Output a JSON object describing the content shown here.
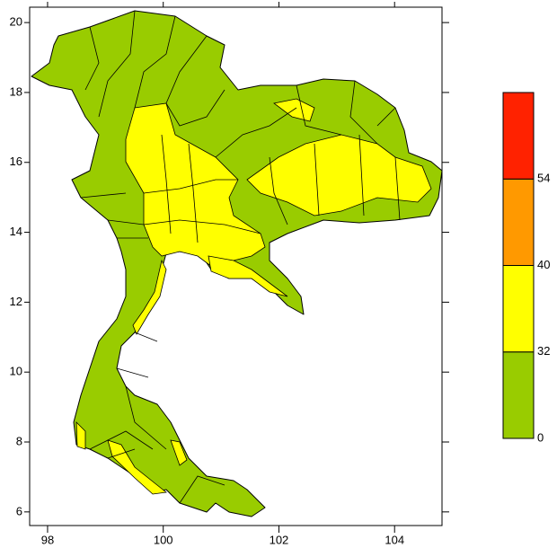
{
  "chart_data": {
    "type": "map",
    "xlim": [
      97.69,
      104.82
    ],
    "ylim": [
      5.61,
      20.44
    ],
    "xticks": [
      98,
      100,
      102,
      104
    ],
    "yticks": [
      6,
      8,
      10,
      12,
      14,
      16,
      18,
      20
    ],
    "colorbar": {
      "levels": [
        0,
        32,
        40,
        54
      ],
      "colors": [
        "#99cc00",
        "#ffff00",
        "#ff9900",
        "#ff2200"
      ]
    }
  }
}
